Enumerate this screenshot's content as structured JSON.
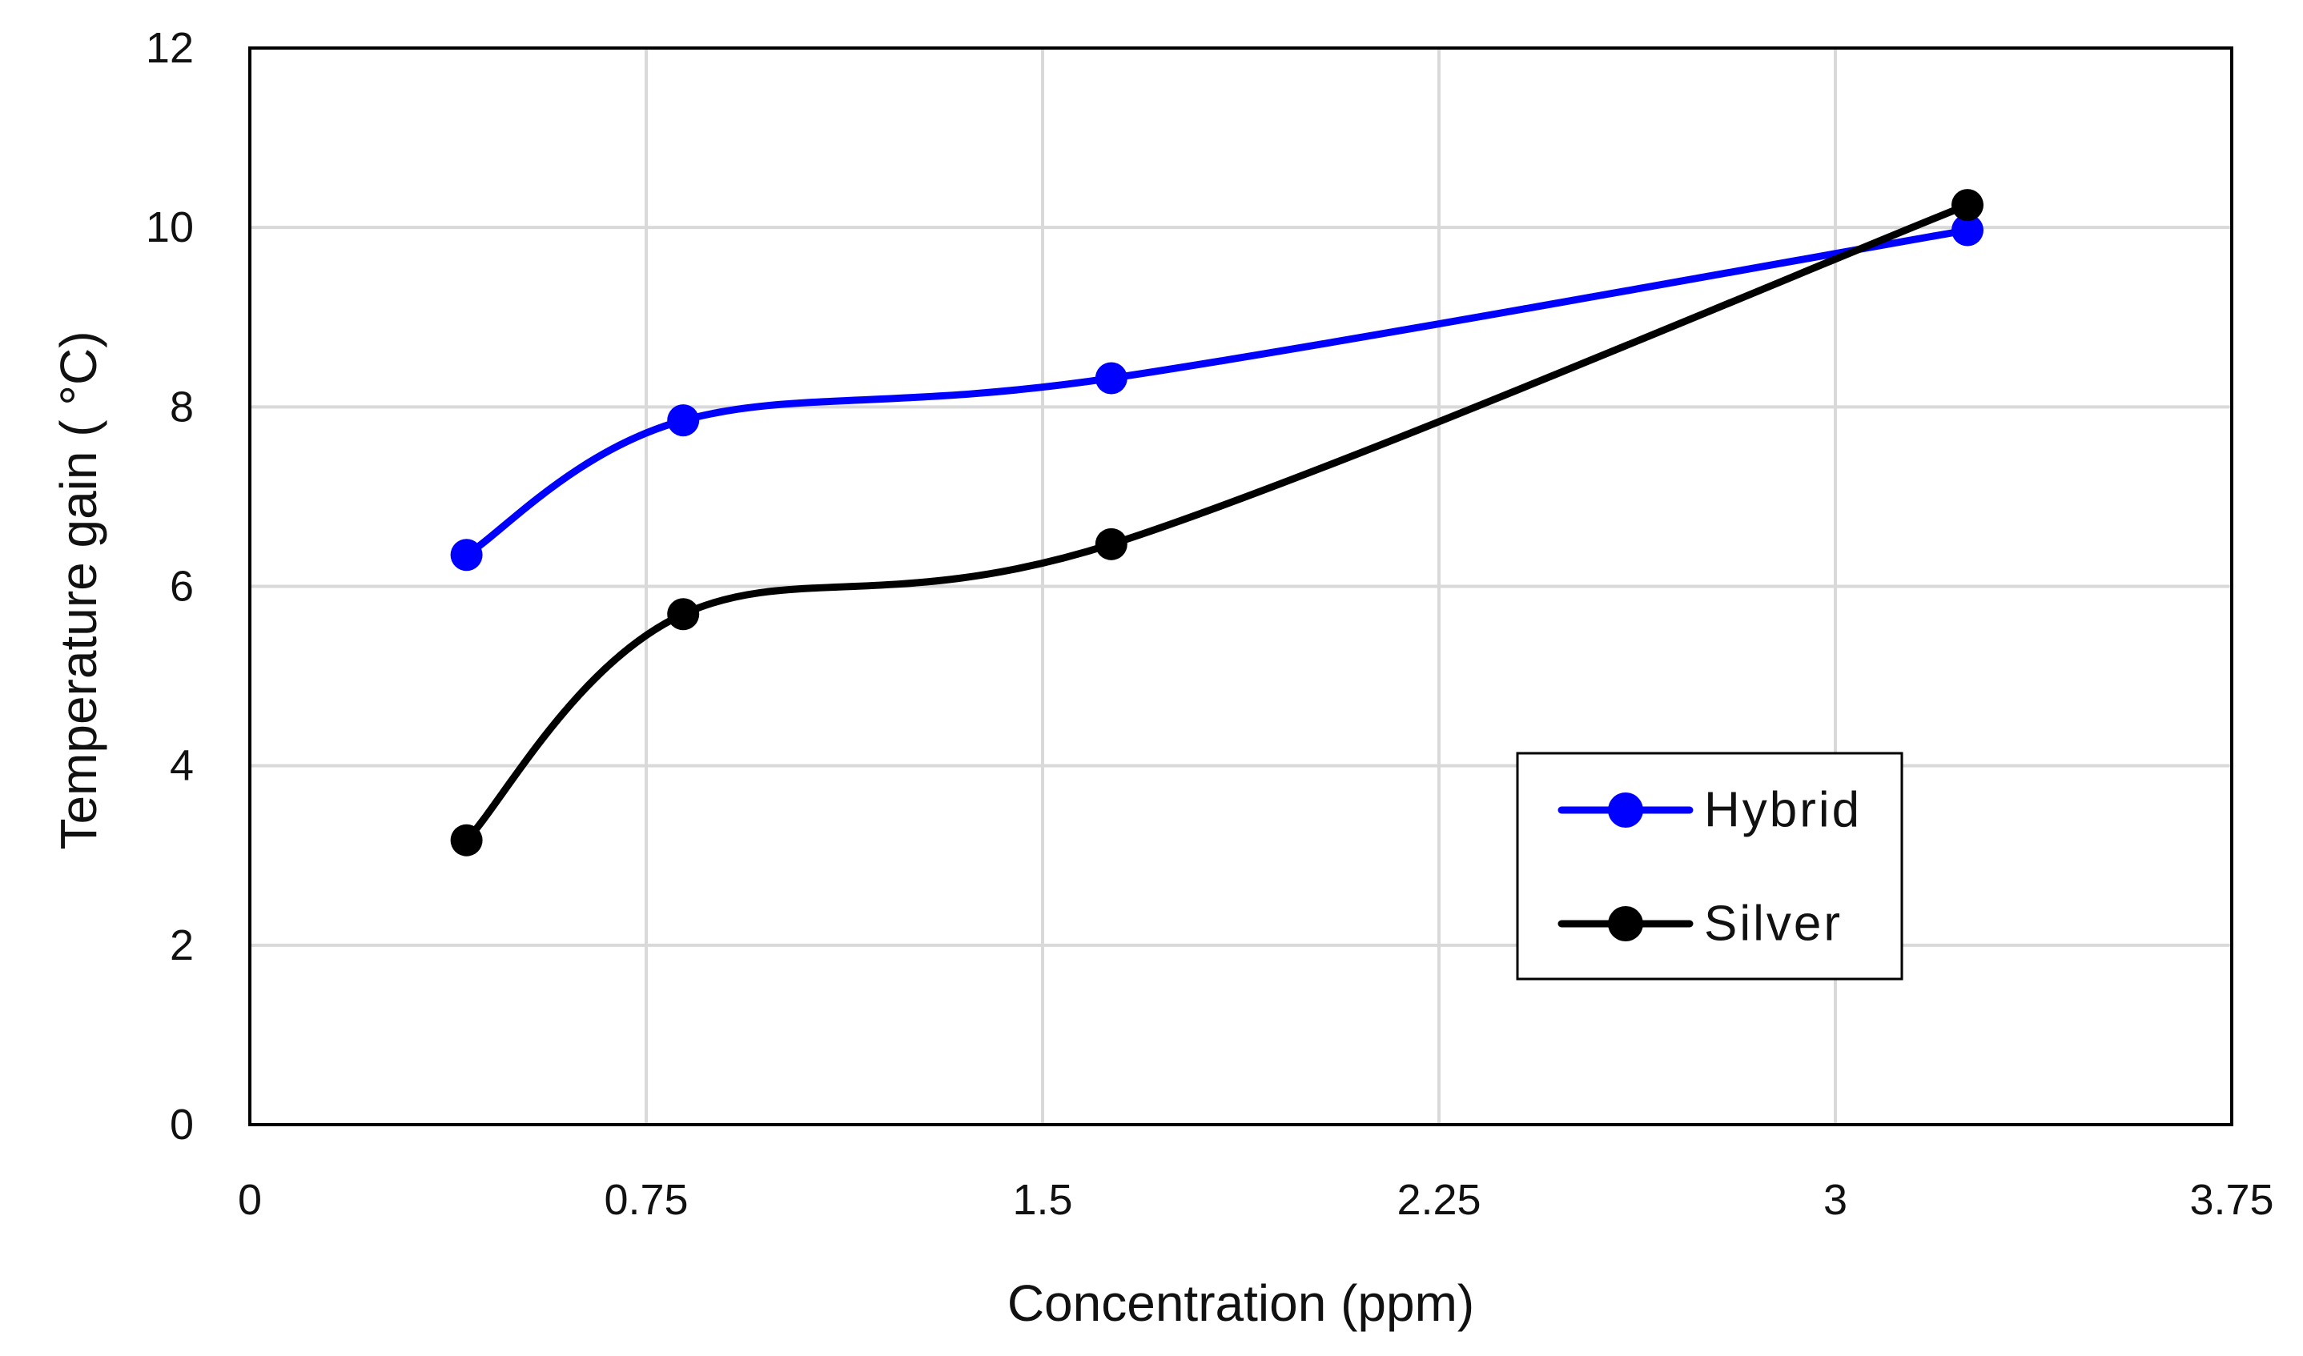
{
  "chart_data": {
    "type": "line",
    "title": "",
    "xlabel": "Concentration (ppm)",
    "ylabel": "Temperature gain ( °C)",
    "xlim": [
      0,
      3.75
    ],
    "ylim": [
      0,
      12
    ],
    "xticks": [
      0,
      0.75,
      1.5,
      2.25,
      3,
      3.75
    ],
    "xtick_labels": [
      "0",
      "0.75",
      "1.5",
      "2.25",
      "3",
      "3.75"
    ],
    "yticks": [
      0,
      2,
      4,
      6,
      8,
      10,
      12
    ],
    "ytick_labels": [
      "0",
      "2",
      "4",
      "6",
      "8",
      "10",
      "12"
    ],
    "grid": true,
    "smooth": true,
    "legend_position": "center-right",
    "series": [
      {
        "name": "Hybrid",
        "color": "#0000ff",
        "x": [
          0.41,
          0.82,
          1.63,
          3.25
        ],
        "y": [
          6.35,
          7.85,
          8.32,
          9.97
        ]
      },
      {
        "name": "Silver",
        "color": "#000000",
        "x": [
          0.41,
          0.82,
          1.63,
          3.25
        ],
        "y": [
          3.17,
          5.69,
          6.47,
          10.25
        ]
      }
    ]
  }
}
